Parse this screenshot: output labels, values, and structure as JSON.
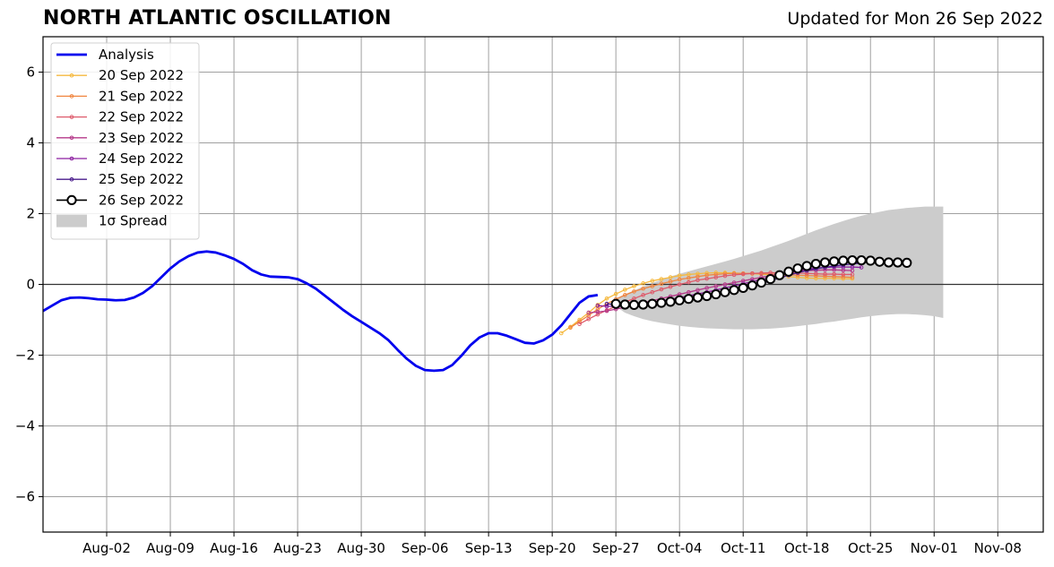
{
  "header": {
    "title": "NORTH ATLANTIC OSCILLATION",
    "updated": "Updated for Mon 26 Sep 2022"
  },
  "chart_data": {
    "type": "line",
    "title": "NORTH ATLANTIC OSCILLATION",
    "subtitle": "Updated for Mon 26 Sep 2022",
    "xlabel": "",
    "ylabel": "",
    "xlim": [
      "2022-07-26",
      "2022-11-13"
    ],
    "ylim": [
      -7,
      7
    ],
    "grid": true,
    "x_tick_labels": [
      "Aug-02",
      "Aug-09",
      "Aug-16",
      "Aug-23",
      "Aug-30",
      "Sep-06",
      "Sep-13",
      "Sep-20",
      "Sep-27",
      "Oct-04",
      "Oct-11",
      "Oct-18",
      "Oct-25",
      "Nov-01",
      "Nov-08"
    ],
    "x_tick_dates": [
      "2022-08-02",
      "2022-08-09",
      "2022-08-16",
      "2022-08-23",
      "2022-08-30",
      "2022-09-06",
      "2022-09-13",
      "2022-09-20",
      "2022-09-27",
      "2022-10-04",
      "2022-10-11",
      "2022-10-18",
      "2022-10-25",
      "2022-11-01",
      "2022-11-08"
    ],
    "y_ticks": [
      -6,
      -4,
      -2,
      0,
      2,
      4,
      6
    ],
    "y_tick_labels": [
      "−6",
      "−4",
      "−2",
      "0",
      "2",
      "4",
      "6"
    ],
    "legend_position": "top-left",
    "colors": {
      "analysis": "#0000ee",
      "spread": "#cccccc",
      "20 Sep 2022": "#f5b93f",
      "21 Sep 2022": "#f0853f",
      "22 Sep 2022": "#de5a6b",
      "23 Sep 2022": "#b53a8a",
      "24 Sep 2022": "#8c1fa0",
      "25 Sep 2022": "#4a1c8c",
      "26 Sep 2022": "#000000"
    },
    "legend": [
      "Analysis",
      "20 Sep 2022",
      "21 Sep 2022",
      "22 Sep 2022",
      "23 Sep 2022",
      "24 Sep 2022",
      "25 Sep 2022",
      "26 Sep 2022",
      "1σ Spread"
    ],
    "analysis": {
      "name": "Analysis",
      "start_date": "2022-07-26",
      "values": [
        -0.75,
        -0.6,
        -0.45,
        -0.38,
        -0.37,
        -0.39,
        -0.42,
        -0.43,
        -0.45,
        -0.44,
        -0.37,
        -0.24,
        -0.05,
        0.2,
        0.45,
        0.65,
        0.8,
        0.9,
        0.93,
        0.9,
        0.82,
        0.72,
        0.58,
        0.4,
        0.28,
        0.22,
        0.21,
        0.2,
        0.15,
        0.03,
        -0.12,
        -0.32,
        -0.52,
        -0.72,
        -0.9,
        -1.06,
        -1.22,
        -1.38,
        -1.58,
        -1.85,
        -2.1,
        -2.3,
        -2.42,
        -2.44,
        -2.42,
        -2.28,
        -2.02,
        -1.72,
        -1.5,
        -1.38,
        -1.38,
        -1.45,
        -1.55,
        -1.65,
        -1.67,
        -1.58,
        -1.42,
        -1.16,
        -0.84,
        -0.52,
        -0.34,
        -0.3
      ]
    },
    "forecasts": [
      {
        "name": "20 Sep 2022",
        "start_date": "2022-09-21",
        "values": [
          -1.38,
          -1.2,
          -1.0,
          -0.8,
          -0.58,
          -0.4,
          -0.27,
          -0.15,
          -0.05,
          0.03,
          0.1,
          0.15,
          0.2,
          0.25,
          0.28,
          0.3,
          0.32,
          0.33,
          0.33,
          0.32,
          0.31,
          0.3,
          0.29,
          0.27,
          0.25,
          0.22,
          0.2,
          0.18,
          0.17,
          0.17,
          0.17,
          0.16,
          0.16
        ]
      },
      {
        "name": "21 Sep 2022",
        "start_date": "2022-09-22",
        "values": [
          -1.22,
          -1.05,
          -0.88,
          -0.7,
          -0.55,
          -0.42,
          -0.3,
          -0.2,
          -0.12,
          -0.05,
          0.02,
          0.08,
          0.14,
          0.18,
          0.22,
          0.26,
          0.28,
          0.3,
          0.31,
          0.31,
          0.31,
          0.3,
          0.29,
          0.28,
          0.27,
          0.26,
          0.25,
          0.24,
          0.23,
          0.22,
          0.21,
          0.2
        ]
      },
      {
        "name": "22 Sep 2022",
        "start_date": "2022-09-23",
        "values": [
          -1.12,
          -0.98,
          -0.85,
          -0.73,
          -0.62,
          -0.5,
          -0.4,
          -0.3,
          -0.22,
          -0.14,
          -0.07,
          0.0,
          0.06,
          0.12,
          0.16,
          0.2,
          0.24,
          0.27,
          0.29,
          0.31,
          0.32,
          0.33,
          0.33,
          0.33,
          0.32,
          0.31,
          0.3,
          0.29,
          0.29,
          0.28,
          0.28
        ]
      },
      {
        "name": "23 Sep 2022",
        "start_date": "2022-09-24",
        "values": [
          -0.8,
          -0.78,
          -0.75,
          -0.7,
          -0.65,
          -0.58,
          -0.52,
          -0.46,
          -0.4,
          -0.34,
          -0.28,
          -0.22,
          -0.16,
          -0.1,
          -0.05,
          0.0,
          0.05,
          0.1,
          0.15,
          0.2,
          0.25,
          0.3,
          0.34,
          0.37,
          0.39,
          0.4,
          0.41,
          0.41,
          0.4,
          0.39
        ]
      },
      {
        "name": "24 Sep 2022",
        "start_date": "2022-09-25",
        "values": [
          -0.6,
          -0.62,
          -0.62,
          -0.6,
          -0.58,
          -0.55,
          -0.51,
          -0.47,
          -0.42,
          -0.37,
          -0.32,
          -0.27,
          -0.22,
          -0.16,
          -0.1,
          -0.04,
          0.02,
          0.08,
          0.14,
          0.2,
          0.26,
          0.32,
          0.38,
          0.43,
          0.46,
          0.48,
          0.49,
          0.49,
          0.49,
          0.48
        ]
      },
      {
        "name": "25 Sep 2022",
        "start_date": "2022-09-26",
        "values": [
          -0.55,
          -0.57,
          -0.58,
          -0.57,
          -0.56,
          -0.54,
          -0.51,
          -0.48,
          -0.44,
          -0.4,
          -0.36,
          -0.31,
          -0.26,
          -0.21,
          -0.16,
          -0.1,
          -0.04,
          0.02,
          0.1,
          0.18,
          0.26,
          0.33,
          0.39,
          0.44,
          0.48,
          0.52,
          0.55,
          0.58,
          0.6
        ]
      },
      {
        "name": "26 Sep 2022",
        "start_date": "2022-09-27",
        "values": [
          -0.55,
          -0.57,
          -0.58,
          -0.57,
          -0.55,
          -0.52,
          -0.49,
          -0.45,
          -0.41,
          -0.37,
          -0.33,
          -0.28,
          -0.22,
          -0.16,
          -0.1,
          -0.03,
          0.05,
          0.15,
          0.26,
          0.36,
          0.45,
          0.52,
          0.58,
          0.62,
          0.65,
          0.67,
          0.68,
          0.68,
          0.67,
          0.64,
          0.62,
          0.62,
          0.61
        ]
      }
    ],
    "spread": {
      "name": "1σ Spread",
      "start_date": "2022-09-27",
      "upper": [
        -0.4,
        -0.28,
        -0.17,
        -0.06,
        0.04,
        0.13,
        0.22,
        0.3,
        0.37,
        0.44,
        0.51,
        0.58,
        0.65,
        0.72,
        0.8,
        0.88,
        0.96,
        1.05,
        1.14,
        1.23,
        1.33,
        1.43,
        1.53,
        1.62,
        1.71,
        1.79,
        1.87,
        1.94,
        2.0,
        2.05,
        2.1,
        2.13,
        2.16,
        2.18,
        2.2,
        2.2,
        2.2
      ],
      "lower": [
        -0.62,
        -0.8,
        -0.9,
        -0.98,
        -1.04,
        -1.09,
        -1.13,
        -1.17,
        -1.2,
        -1.22,
        -1.24,
        -1.25,
        -1.26,
        -1.27,
        -1.27,
        -1.27,
        -1.26,
        -1.25,
        -1.23,
        -1.21,
        -1.18,
        -1.15,
        -1.12,
        -1.08,
        -1.05,
        -1.01,
        -0.97,
        -0.93,
        -0.9,
        -0.87,
        -0.85,
        -0.84,
        -0.84,
        -0.85,
        -0.87,
        -0.9,
        -0.95
      ]
    }
  }
}
